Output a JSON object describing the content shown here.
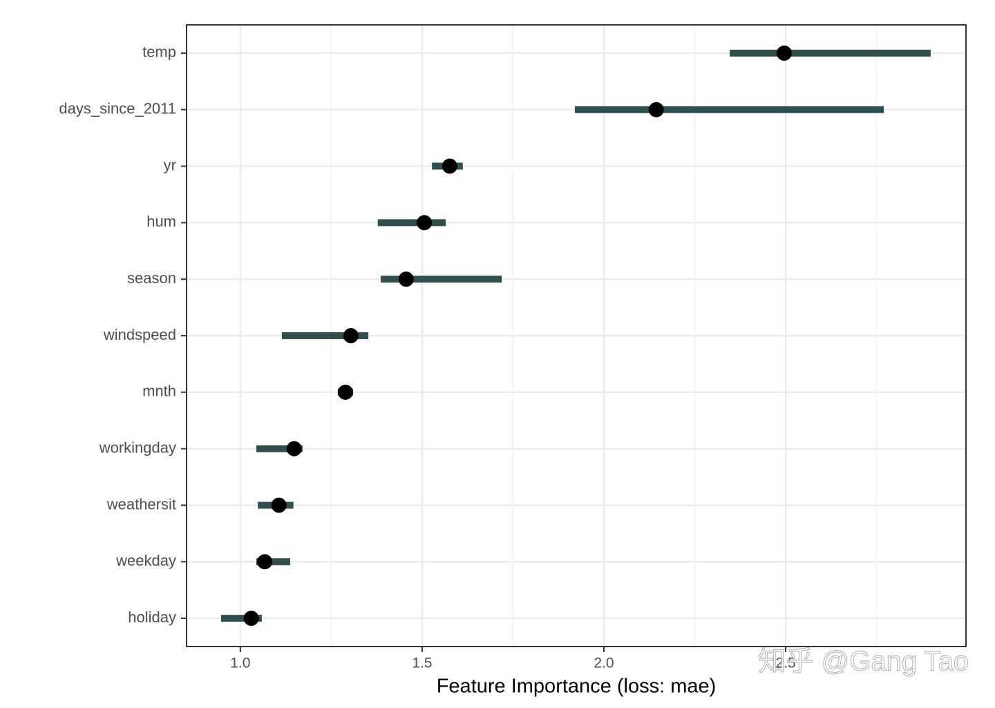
{
  "chart_data": {
    "type": "dot-range",
    "x_label": "Feature Importance (loss: mae)",
    "categories": [
      "temp",
      "days_since_2011",
      "yr",
      "hum",
      "season",
      "windspeed",
      "mnth",
      "workingday",
      "weathersit",
      "weekday",
      "holiday"
    ],
    "series": [
      {
        "color": "#2f4f4f",
        "point_color": "#000000",
        "values": [
          2.496,
          2.144,
          1.576,
          1.506,
          1.456,
          1.304,
          1.289,
          1.148,
          1.106,
          1.067,
          1.03
        ],
        "lower": [
          2.346,
          1.92,
          1.527,
          1.378,
          1.386,
          1.114,
          1.268,
          1.044,
          1.048,
          1.044,
          0.947
        ],
        "upper": [
          2.899,
          2.77,
          1.612,
          1.565,
          1.719,
          1.352,
          1.31,
          1.171,
          1.146,
          1.137,
          1.059
        ]
      }
    ],
    "xlim": [
      0.852,
      2.996
    ],
    "xticks": [
      {
        "value": 1,
        "label": "1.0"
      },
      1.5,
      {
        "value": 2,
        "label": "2.0"
      },
      2.5
    ],
    "x_minor_gridlines": [
      1.25,
      1.75,
      2.25,
      2.75
    ],
    "grid": true,
    "watermark": "知乎 @Gang Tao"
  }
}
